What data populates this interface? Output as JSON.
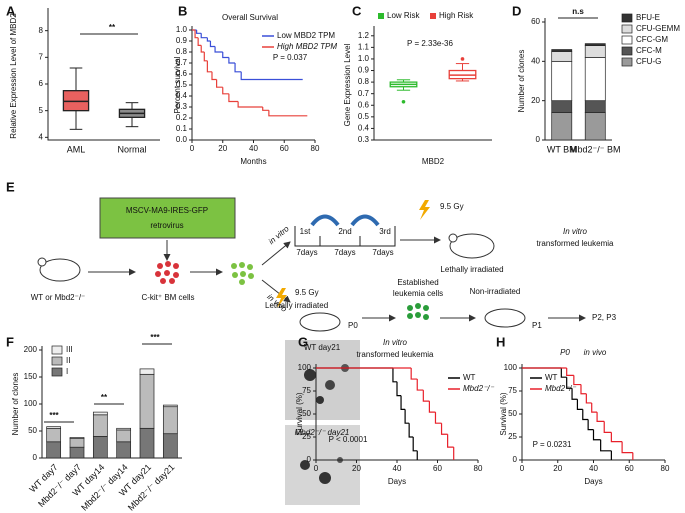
{
  "chart_data": [
    {
      "type": "box",
      "panel": "A",
      "ylabel": "Relative Expression Level of MBD2",
      "categories": [
        "AML",
        "Normal"
      ],
      "boxes": [
        {
          "color": "#e8615f",
          "whisker_low": 4.3,
          "q1": 5.0,
          "median": 5.35,
          "q3": 5.75,
          "whisker_high": 6.6
        },
        {
          "color": "#8c8c8c",
          "whisker_low": 4.4,
          "q1": 4.75,
          "median": 4.9,
          "q3": 5.05,
          "whisker_high": 5.3
        }
      ],
      "ylim": [
        3.9,
        8.7
      ],
      "yticks": [
        4,
        5,
        6,
        7,
        8
      ],
      "annotations": [
        "**"
      ]
    },
    {
      "type": "step",
      "panel": "B",
      "title": "Overall Survival",
      "xlabel": "Months",
      "ylabel": "Percent survival",
      "xlim": [
        0,
        80
      ],
      "xticks": [
        0,
        20,
        40,
        60,
        80
      ],
      "ylim": [
        0,
        1.0
      ],
      "yticks": [
        {
          "value": 0,
          "label": "0.0"
        },
        0.1,
        0.2,
        0.3,
        0.4,
        0.5,
        0.6,
        0.7,
        0.8,
        0.9,
        {
          "value": 1,
          "label": "1.0"
        }
      ],
      "series": [
        {
          "name": "Low MBD2 TPM",
          "color": "#3a4fd8",
          "x": [
            0,
            3,
            6,
            10,
            12,
            15,
            20,
            24,
            28,
            32,
            72
          ],
          "values": [
            1,
            0.97,
            0.93,
            0.9,
            0.85,
            0.8,
            0.75,
            0.7,
            0.62,
            0.55,
            0.55
          ]
        },
        {
          "name": "High MBD2 TPM",
          "color": "#e8403a",
          "x": [
            0,
            2,
            4,
            6,
            8,
            10,
            13,
            16,
            20,
            24,
            30,
            46,
            50,
            75
          ],
          "values": [
            1,
            0.93,
            0.86,
            0.8,
            0.72,
            0.62,
            0.55,
            0.48,
            0.42,
            0.35,
            0.3,
            0.27,
            0.22,
            0.22
          ]
        }
      ],
      "annotations": [
        "P = 0.037"
      ]
    },
    {
      "type": "box",
      "panel": "C",
      "xlabel": "MBD2",
      "ylabel": "Gene Expression Level",
      "boxes": [
        {
          "name": "Low Risk",
          "color": "#2dbb2d",
          "whisker_low": 0.73,
          "q1": 0.76,
          "median": 0.78,
          "q3": 0.8,
          "whisker_high": 0.82,
          "outliers": [
            0.63
          ]
        },
        {
          "name": "High Risk",
          "color": "#e8403a",
          "whisker_low": 0.81,
          "q1": 0.83,
          "median": 0.86,
          "q3": 0.9,
          "whisker_high": 0.96,
          "outliers": [
            1.0
          ]
        }
      ],
      "ylim": [
        0.3,
        1.25
      ],
      "yticks": [
        0.3,
        0.4,
        0.5,
        0.6,
        0.7,
        0.8,
        0.9,
        {
          "value": 1,
          "label": "1.0"
        },
        1.1,
        1.2
      ],
      "annotations": [
        "P = 2.33e-36"
      ]
    },
    {
      "type": "stacked-bar",
      "panel": "D",
      "ylabel": "Number of clones",
      "categories": [
        "WT BM",
        "Mbd2⁻/⁻ BM"
      ],
      "series": [
        {
          "name": "CFU-G",
          "color": "#9a9a9a",
          "values": [
            14,
            14
          ]
        },
        {
          "name": "CFC-M",
          "color": "#555555",
          "values": [
            6,
            6
          ]
        },
        {
          "name": "CFC-GM",
          "color": "#ffffff",
          "values": [
            20,
            22
          ]
        },
        {
          "name": "CFU-GEMM",
          "color": "#dddddd",
          "values": [
            5,
            6
          ]
        },
        {
          "name": "BFU-E",
          "color": "#333333",
          "values": [
            1,
            1
          ]
        }
      ],
      "ylim": [
        0,
        60
      ],
      "yticks": [
        0,
        20,
        40,
        60
      ],
      "annotations": [
        "n.s"
      ]
    },
    {
      "type": "stacked-bar",
      "panel": "F",
      "ylabel": "Number of clones",
      "categories": [
        "WT day7",
        "Mbd2⁻/⁻ day7",
        "WT day14",
        "Mbd2⁻/⁻ day14",
        "WT day21",
        "Mbd2⁻/⁻ day21"
      ],
      "series": [
        {
          "name": "I",
          "color": "#777777",
          "values": [
            30,
            20,
            40,
            30,
            55,
            45
          ]
        },
        {
          "name": "II",
          "color": "#bbbbbb",
          "values": [
            25,
            16,
            40,
            22,
            100,
            50
          ]
        },
        {
          "name": "III",
          "color": "#eeeeee",
          "values": [
            3,
            2,
            5,
            3,
            10,
            3
          ]
        }
      ],
      "ylim": [
        0,
        200
      ],
      "yticks": [
        0,
        50,
        100,
        150,
        200
      ],
      "annotations": [
        "***",
        "**",
        "***"
      ]
    },
    {
      "type": "step",
      "panel": "G",
      "title": "In vitro",
      "subtitle": "transformed leukemia",
      "xlabel": "Days",
      "ylabel": "Survival (%)",
      "xlim": [
        0,
        80
      ],
      "xticks": [
        0,
        20,
        40,
        60,
        80
      ],
      "ylim": [
        0,
        100
      ],
      "yticks": [
        0,
        25,
        50,
        75,
        100
      ],
      "series": [
        {
          "name": "WT",
          "color": "#000000",
          "x": [
            0,
            38,
            40,
            42,
            44,
            46,
            48,
            50
          ],
          "values": [
            100,
            85,
            70,
            55,
            40,
            25,
            10,
            0
          ]
        },
        {
          "name": "Mbd2⁻/⁻",
          "color": "#e8202a",
          "x": [
            0,
            47,
            50,
            53,
            56,
            59,
            62,
            65,
            68
          ],
          "values": [
            100,
            88,
            76,
            64,
            52,
            40,
            28,
            14,
            0
          ]
        }
      ],
      "annotations": [
        "P < 0.0001"
      ]
    },
    {
      "type": "step",
      "panel": "H",
      "title": "P0",
      "subtitle": "in vivo",
      "xlabel": "Days",
      "ylabel": "Survival (%)",
      "xlim": [
        0,
        80
      ],
      "xticks": [
        0,
        20,
        40,
        60,
        80
      ],
      "ylim": [
        0,
        100
      ],
      "yticks": [
        0,
        25,
        50,
        75,
        100
      ],
      "series": [
        {
          "name": "WT",
          "color": "#000000",
          "x": [
            0,
            22,
            25,
            28,
            31,
            34,
            37,
            40,
            44,
            50
          ],
          "values": [
            100,
            90,
            78,
            66,
            55,
            44,
            33,
            22,
            10,
            0
          ]
        },
        {
          "name": "Mbd2⁻/⁻",
          "color": "#e8202a",
          "x": [
            0,
            25,
            29,
            33,
            36,
            39,
            42,
            46,
            50,
            56,
            62
          ],
          "values": [
            100,
            92,
            82,
            72,
            62,
            52,
            42,
            30,
            20,
            8,
            0
          ]
        }
      ],
      "annotations": [
        "P = 0.0231"
      ]
    }
  ],
  "diagram": {
    "panel": "E",
    "vector": "MSCV-MA9-IRES-GFP",
    "vector_sub": "retrovirus",
    "donor": "WT or Mbd2⁻/⁻",
    "cells": "C-kit⁺ BM cells",
    "route_vitro": "in vitro",
    "route_vivo": "in vivo",
    "rounds": [
      "1st",
      "2nd",
      "3rd"
    ],
    "durations": [
      "7days",
      "7days",
      "7days"
    ],
    "dose_top": "9.5 Gy",
    "irradiated_top": "Lethally irradiated",
    "result_top": "In vitro",
    "result_top_sub": "transformed leukemia",
    "dose_bottom": "9.5 Gy",
    "irradiated_bottom": "Lethally irradiated",
    "p0": "P0",
    "established": "Established",
    "established_sub": "leukemia cells",
    "non_irradiated": "Non-irradiated",
    "p1": "P1",
    "next": "P2, P3"
  },
  "images": [
    {
      "label": "WT day21"
    },
    {
      "label": "Mbd2⁻/⁻ day21"
    }
  ]
}
